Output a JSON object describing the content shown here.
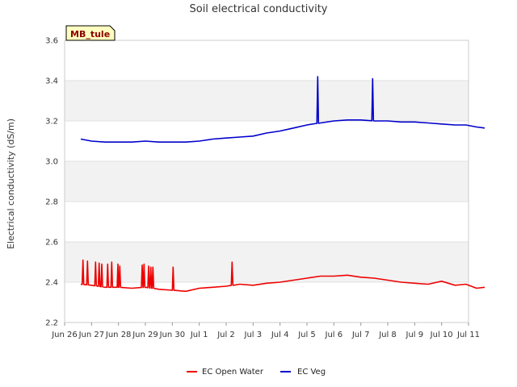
{
  "chart_data": {
    "type": "line",
    "title": "Soil electrical conductivity",
    "ylabel": "Electrical conductivity (dS/m)",
    "xlabel": "",
    "site_label": "MB_tule",
    "ylim": [
      2.2,
      3.6
    ],
    "xlim": [
      0,
      15
    ],
    "y_ticks": [
      2.2,
      2.4,
      2.6,
      2.8,
      3.0,
      3.2,
      3.4,
      3.6
    ],
    "y_tick_labels": [
      "2.2",
      "2.4",
      "2.6",
      "2.8",
      "3.0",
      "3.2",
      "3.4",
      "3.6"
    ],
    "x_ticks": [
      0,
      1,
      2,
      3,
      4,
      5,
      6,
      7,
      8,
      9,
      10,
      11,
      12,
      13,
      14,
      15
    ],
    "x_tick_labels": [
      "Jun 26",
      "Jun 27",
      "Jun 28",
      "Jun 29",
      "Jun 30",
      "Jul 1",
      "Jul 2",
      "Jul 3",
      "Jul 4",
      "Jul 5",
      "Jul 6",
      "Jul 7",
      "Jul 8",
      "Jul 9",
      "Jul 10",
      "Jul 11"
    ],
    "grid": true,
    "legend_position": "bottom-center",
    "series": [
      {
        "name": "EC Open Water",
        "color": "#ee0000",
        "x": [
          0.6,
          1.0,
          1.5,
          2.0,
          2.5,
          3.0,
          3.5,
          4.0,
          4.5,
          5.0,
          5.5,
          6.0,
          6.5,
          7.0,
          7.5,
          8.0,
          8.5,
          9.0,
          9.5,
          10.0,
          10.5,
          11.0,
          11.5,
          12.0,
          12.5,
          13.0,
          13.5,
          14.0,
          14.5,
          14.9,
          15.3,
          15.6
        ],
        "values": [
          2.39,
          2.385,
          2.375,
          2.375,
          2.37,
          2.375,
          2.365,
          2.36,
          2.355,
          2.37,
          2.375,
          2.38,
          2.39,
          2.385,
          2.395,
          2.4,
          2.41,
          2.42,
          2.43,
          2.43,
          2.435,
          2.425,
          2.42,
          2.41,
          2.4,
          2.395,
          2.39,
          2.405,
          2.385,
          2.39,
          2.37,
          2.375
        ],
        "spikes": [
          {
            "x": 0.68,
            "value": 2.51
          },
          {
            "x": 0.85,
            "value": 2.505
          },
          {
            "x": 1.15,
            "value": 2.5
          },
          {
            "x": 1.28,
            "value": 2.495
          },
          {
            "x": 1.38,
            "value": 2.49
          },
          {
            "x": 1.6,
            "value": 2.49
          },
          {
            "x": 1.75,
            "value": 2.5
          },
          {
            "x": 1.98,
            "value": 2.49
          },
          {
            "x": 2.05,
            "value": 2.48
          },
          {
            "x": 2.88,
            "value": 2.485
          },
          {
            "x": 2.95,
            "value": 2.49
          },
          {
            "x": 3.12,
            "value": 2.48
          },
          {
            "x": 3.2,
            "value": 2.475
          },
          {
            "x": 3.28,
            "value": 2.475
          },
          {
            "x": 4.03,
            "value": 2.475
          },
          {
            "x": 6.22,
            "value": 2.5
          }
        ]
      },
      {
        "name": "EC Veg",
        "color": "#0000cc",
        "x": [
          0.6,
          1.0,
          1.5,
          2.0,
          2.5,
          3.0,
          3.5,
          4.0,
          4.5,
          5.0,
          5.5,
          6.0,
          6.5,
          7.0,
          7.5,
          8.0,
          8.5,
          9.0,
          9.5,
          10.0,
          10.5,
          11.0,
          11.5,
          12.0,
          12.5,
          13.0,
          13.5,
          14.0,
          14.5,
          14.9,
          15.3,
          15.6
        ],
        "values": [
          3.11,
          3.1,
          3.095,
          3.095,
          3.095,
          3.1,
          3.095,
          3.095,
          3.095,
          3.1,
          3.11,
          3.115,
          3.12,
          3.125,
          3.14,
          3.15,
          3.165,
          3.18,
          3.19,
          3.2,
          3.205,
          3.205,
          3.2,
          3.2,
          3.195,
          3.195,
          3.19,
          3.185,
          3.18,
          3.18,
          3.17,
          3.165
        ],
        "spikes": [
          {
            "x": 9.4,
            "value": 3.42
          },
          {
            "x": 11.44,
            "value": 3.41
          }
        ]
      }
    ]
  }
}
